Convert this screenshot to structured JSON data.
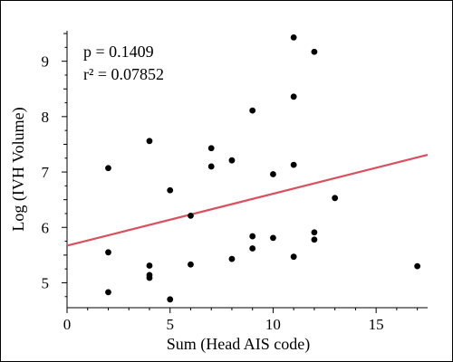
{
  "chart_data": {
    "type": "scatter",
    "title": "",
    "xlabel": "Sum (Head AIS code)",
    "ylabel": "Log (IVH Volume)",
    "xlim": [
      0,
      17.5
    ],
    "ylim": [
      4.55,
      9.55
    ],
    "xticks": [
      0,
      5,
      10,
      15
    ],
    "yticks": [
      5,
      6,
      7,
      8,
      9
    ],
    "grid": false,
    "points": [
      {
        "x": 2,
        "y": 7.07
      },
      {
        "x": 2,
        "y": 5.55
      },
      {
        "x": 2,
        "y": 4.83
      },
      {
        "x": 4,
        "y": 7.56
      },
      {
        "x": 4,
        "y": 5.31
      },
      {
        "x": 4,
        "y": 5.14
      },
      {
        "x": 4,
        "y": 5.09
      },
      {
        "x": 5,
        "y": 6.67
      },
      {
        "x": 5,
        "y": 4.7
      },
      {
        "x": 6,
        "y": 6.21
      },
      {
        "x": 6,
        "y": 5.33
      },
      {
        "x": 7,
        "y": 7.43
      },
      {
        "x": 7,
        "y": 7.1
      },
      {
        "x": 8,
        "y": 7.21
      },
      {
        "x": 8,
        "y": 5.43
      },
      {
        "x": 9,
        "y": 8.11
      },
      {
        "x": 9,
        "y": 5.84
      },
      {
        "x": 9,
        "y": 5.62
      },
      {
        "x": 10,
        "y": 6.96
      },
      {
        "x": 10,
        "y": 5.81
      },
      {
        "x": 11,
        "y": 9.43
      },
      {
        "x": 11,
        "y": 8.36
      },
      {
        "x": 11,
        "y": 7.13
      },
      {
        "x": 11,
        "y": 5.47
      },
      {
        "x": 12,
        "y": 9.17
      },
      {
        "x": 12,
        "y": 5.91
      },
      {
        "x": 12,
        "y": 5.78
      },
      {
        "x": 13,
        "y": 6.53
      },
      {
        "x": 17,
        "y": 5.3
      }
    ],
    "fit_line": {
      "x": [
        0,
        17.5
      ],
      "y": [
        5.67,
        7.31
      ],
      "color": "#d9505f"
    },
    "annotations": [
      "p = 0.1409",
      "r² = 0.07852"
    ],
    "colors": {
      "points": "#000000",
      "axes": "#000000"
    }
  }
}
